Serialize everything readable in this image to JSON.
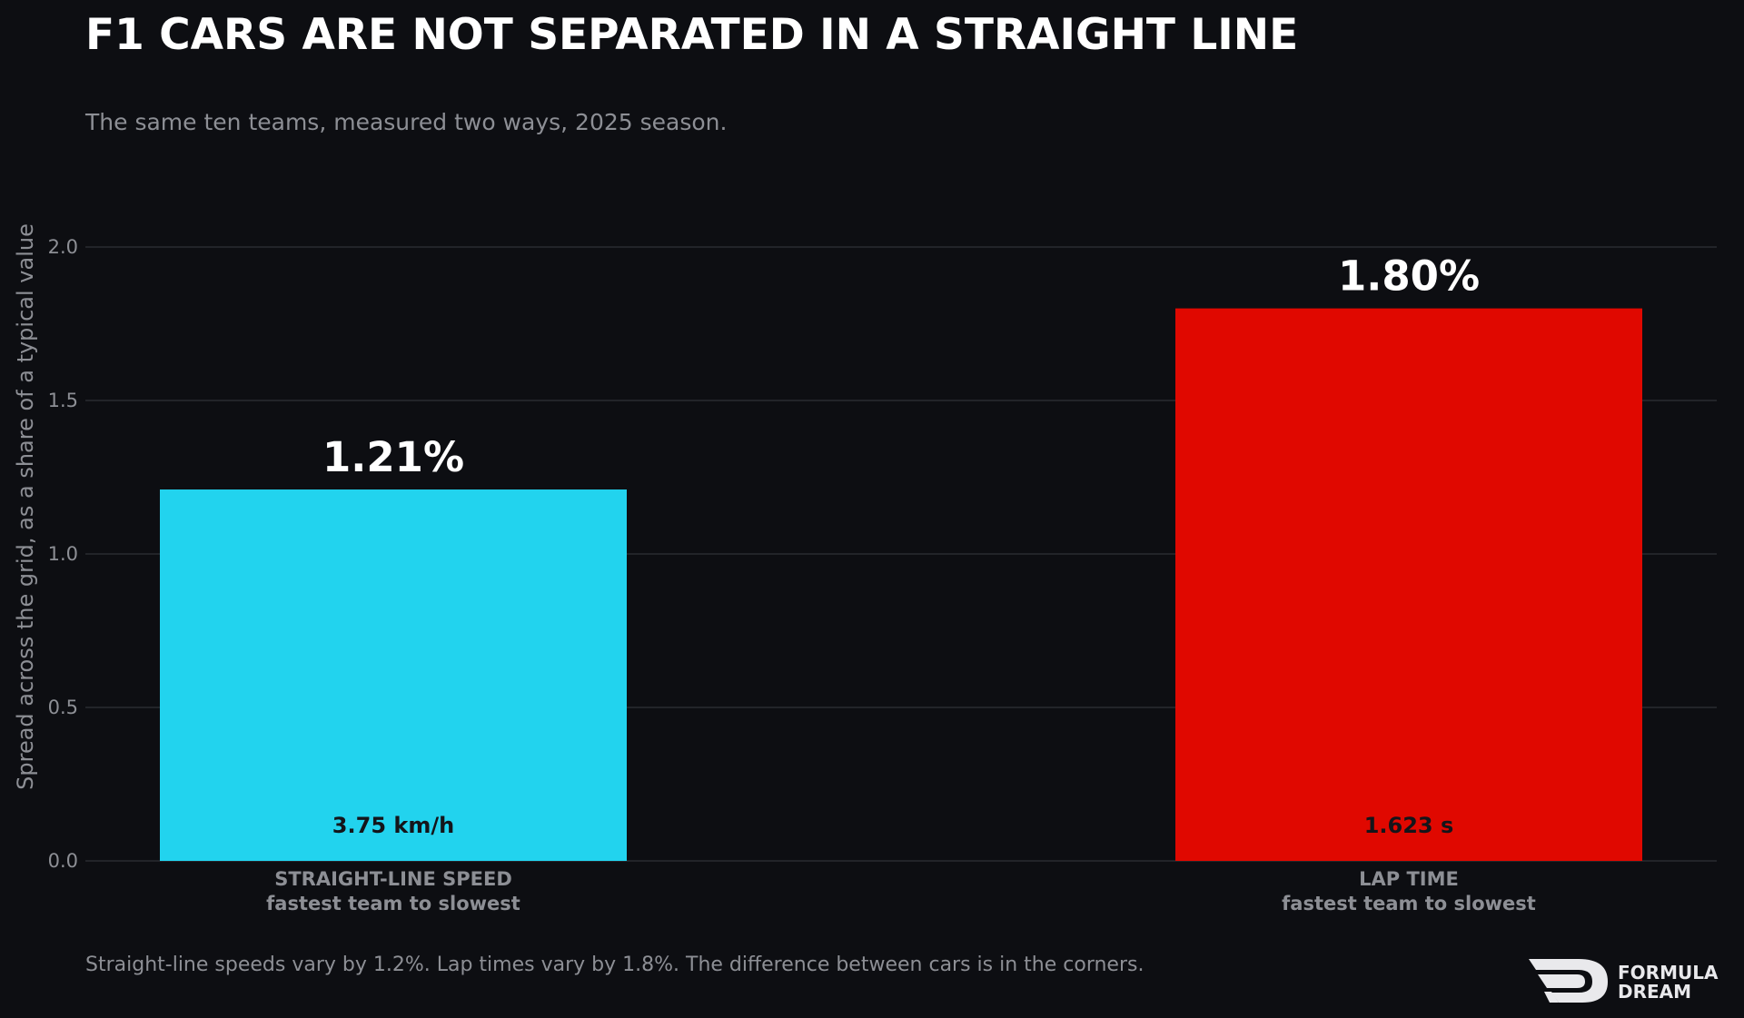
{
  "chart_data": {
    "type": "bar",
    "title": "F1 CARS ARE NOT SEPARATED IN A STRAIGHT LINE",
    "subtitle": "The same ten teams, measured two ways, 2025 season.",
    "ylabel": "Spread across the grid, as a share of a typical value",
    "ylim": [
      0,
      2.2
    ],
    "yticks": [
      0.0,
      0.5,
      1.0,
      1.5,
      2.0
    ],
    "grid": true,
    "categories": [
      {
        "line1": "STRAIGHT-LINE SPEED",
        "line2": "fastest team to slowest"
      },
      {
        "line1": "LAP TIME",
        "line2": "fastest team to slowest"
      }
    ],
    "values": [
      1.21,
      1.8
    ],
    "value_labels": [
      "1.21%",
      "1.80%"
    ],
    "raw_labels": [
      "3.75 km/h",
      "1.623 s"
    ],
    "colors": [
      "#22d3ee",
      "#e00800"
    ],
    "footnote": "Straight-line speeds vary by 1.2%. Lap times vary by 1.8%. The difference between cars is in the corners."
  },
  "brand": {
    "line1": "FORMULA",
    "line2": "DREAM",
    "logo_icon": "formula-dream-logo-icon"
  }
}
